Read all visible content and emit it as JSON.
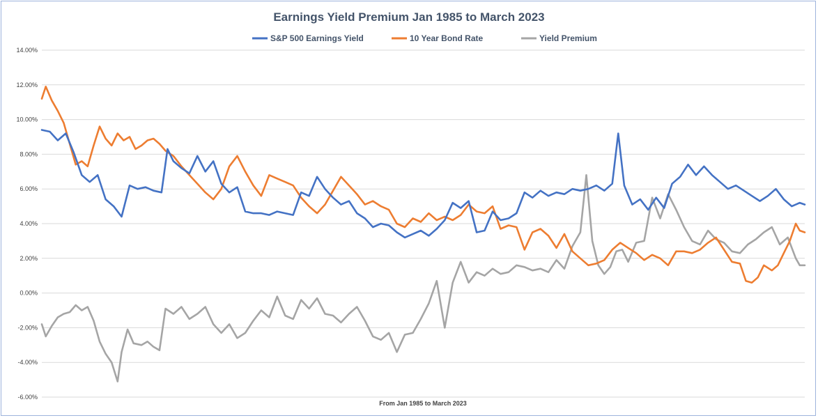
{
  "chart_data": {
    "type": "line",
    "title": "Earnings Yield Premium Jan 1985 to March 2023",
    "xlabel": "From Jan 1985 to March 2023",
    "ylabel": "",
    "ylim": [
      -6,
      14
    ],
    "yticks": [
      -6,
      -4,
      -2,
      0,
      2,
      4,
      6,
      8,
      10,
      12,
      14
    ],
    "ytick_format": "percent_2dp",
    "xlim": [
      1985.0,
      2023.25
    ],
    "grid": true,
    "legend": "top-center",
    "series": [
      {
        "name": "S&P 500 Earnings Yield",
        "color": "#4472c4",
        "points": [
          [
            1985.0,
            9.4
          ],
          [
            1985.4,
            9.3
          ],
          [
            1985.8,
            8.8
          ],
          [
            1986.2,
            9.2
          ],
          [
            1986.6,
            8.1
          ],
          [
            1987.0,
            6.8
          ],
          [
            1987.4,
            6.4
          ],
          [
            1987.8,
            6.8
          ],
          [
            1988.2,
            5.4
          ],
          [
            1988.6,
            5.0
          ],
          [
            1989.0,
            4.4
          ],
          [
            1989.4,
            6.2
          ],
          [
            1989.8,
            6.0
          ],
          [
            1990.2,
            6.1
          ],
          [
            1990.6,
            5.9
          ],
          [
            1991.0,
            5.8
          ],
          [
            1991.3,
            8.3
          ],
          [
            1991.6,
            7.6
          ],
          [
            1992.0,
            7.2
          ],
          [
            1992.4,
            6.9
          ],
          [
            1992.8,
            7.9
          ],
          [
            1993.2,
            7.0
          ],
          [
            1993.6,
            7.6
          ],
          [
            1994.0,
            6.3
          ],
          [
            1994.4,
            5.8
          ],
          [
            1994.8,
            6.1
          ],
          [
            1995.2,
            4.7
          ],
          [
            1995.6,
            4.6
          ],
          [
            1996.0,
            4.6
          ],
          [
            1996.4,
            4.5
          ],
          [
            1996.8,
            4.7
          ],
          [
            1997.2,
            4.6
          ],
          [
            1997.6,
            4.5
          ],
          [
            1998.0,
            5.8
          ],
          [
            1998.4,
            5.6
          ],
          [
            1998.8,
            6.7
          ],
          [
            1999.2,
            6.0
          ],
          [
            1999.6,
            5.5
          ],
          [
            2000.0,
            5.1
          ],
          [
            2000.4,
            5.3
          ],
          [
            2000.8,
            4.6
          ],
          [
            2001.2,
            4.3
          ],
          [
            2001.6,
            3.8
          ],
          [
            2002.0,
            4.0
          ],
          [
            2002.4,
            3.9
          ],
          [
            2002.8,
            3.5
          ],
          [
            2003.2,
            3.2
          ],
          [
            2003.6,
            3.4
          ],
          [
            2004.0,
            3.6
          ],
          [
            2004.4,
            3.3
          ],
          [
            2004.8,
            3.7
          ],
          [
            2005.2,
            4.2
          ],
          [
            2005.6,
            5.2
          ],
          [
            2006.0,
            4.9
          ],
          [
            2006.4,
            5.3
          ],
          [
            2006.8,
            3.5
          ],
          [
            2007.2,
            3.6
          ],
          [
            2007.6,
            4.7
          ],
          [
            2008.0,
            4.2
          ],
          [
            2008.4,
            4.3
          ],
          [
            2008.8,
            4.6
          ],
          [
            2009.2,
            5.8
          ],
          [
            2009.6,
            5.5
          ],
          [
            2010.0,
            5.9
          ],
          [
            2010.4,
            5.6
          ],
          [
            2010.8,
            5.8
          ],
          [
            2011.2,
            5.7
          ],
          [
            2011.6,
            6.0
          ],
          [
            2012.0,
            5.9
          ],
          [
            2012.4,
            6.0
          ],
          [
            2012.8,
            6.2
          ],
          [
            2013.2,
            5.9
          ],
          [
            2013.6,
            6.3
          ],
          [
            2013.9,
            9.2
          ],
          [
            2014.2,
            6.2
          ],
          [
            2014.6,
            5.1
          ],
          [
            2015.0,
            5.4
          ],
          [
            2015.4,
            4.8
          ],
          [
            2015.8,
            5.5
          ],
          [
            2016.2,
            4.9
          ],
          [
            2016.6,
            6.3
          ],
          [
            2017.0,
            6.7
          ],
          [
            2017.4,
            7.4
          ],
          [
            2017.8,
            6.8
          ],
          [
            2018.2,
            7.3
          ],
          [
            2018.6,
            6.8
          ],
          [
            2019.0,
            6.4
          ],
          [
            2019.4,
            6.0
          ],
          [
            2019.8,
            6.2
          ],
          [
            2020.2,
            5.9
          ],
          [
            2020.6,
            5.6
          ],
          [
            2021.0,
            5.3
          ],
          [
            2021.4,
            5.6
          ],
          [
            2021.8,
            6.0
          ],
          [
            2022.2,
            5.4
          ],
          [
            2022.6,
            5.0
          ],
          [
            2023.0,
            5.2
          ],
          [
            2023.25,
            5.1
          ]
        ]
      },
      {
        "name": "10 Year Bond Rate",
        "color": "#ed7d31",
        "points": [
          [
            1985.0,
            11.2
          ],
          [
            1985.2,
            11.9
          ],
          [
            1985.5,
            11.1
          ],
          [
            1985.8,
            10.5
          ],
          [
            1986.1,
            9.8
          ],
          [
            1986.4,
            8.6
          ],
          [
            1986.7,
            7.4
          ],
          [
            1987.0,
            7.6
          ],
          [
            1987.3,
            7.3
          ],
          [
            1987.6,
            8.5
          ],
          [
            1987.9,
            9.6
          ],
          [
            1988.2,
            8.9
          ],
          [
            1988.5,
            8.5
          ],
          [
            1988.8,
            9.2
          ],
          [
            1989.1,
            8.8
          ],
          [
            1989.4,
            9.0
          ],
          [
            1989.7,
            8.3
          ],
          [
            1990.0,
            8.5
          ],
          [
            1990.3,
            8.8
          ],
          [
            1990.6,
            8.9
          ],
          [
            1990.9,
            8.6
          ],
          [
            1991.2,
            8.2
          ],
          [
            1991.6,
            7.9
          ],
          [
            1992.0,
            7.3
          ],
          [
            1992.4,
            6.8
          ],
          [
            1992.8,
            6.3
          ],
          [
            1993.2,
            5.8
          ],
          [
            1993.6,
            5.4
          ],
          [
            1994.0,
            6.0
          ],
          [
            1994.4,
            7.3
          ],
          [
            1994.8,
            7.9
          ],
          [
            1995.2,
            7.0
          ],
          [
            1995.6,
            6.2
          ],
          [
            1996.0,
            5.6
          ],
          [
            1996.4,
            6.8
          ],
          [
            1996.8,
            6.6
          ],
          [
            1997.2,
            6.4
          ],
          [
            1997.6,
            6.2
          ],
          [
            1998.0,
            5.5
          ],
          [
            1998.4,
            5.0
          ],
          [
            1998.8,
            4.6
          ],
          [
            1999.2,
            5.1
          ],
          [
            1999.6,
            5.9
          ],
          [
            2000.0,
            6.7
          ],
          [
            2000.4,
            6.2
          ],
          [
            2000.8,
            5.7
          ],
          [
            2001.2,
            5.1
          ],
          [
            2001.6,
            5.3
          ],
          [
            2002.0,
            5.0
          ],
          [
            2002.4,
            4.8
          ],
          [
            2002.8,
            4.0
          ],
          [
            2003.2,
            3.8
          ],
          [
            2003.6,
            4.3
          ],
          [
            2004.0,
            4.1
          ],
          [
            2004.4,
            4.6
          ],
          [
            2004.8,
            4.2
          ],
          [
            2005.2,
            4.4
          ],
          [
            2005.6,
            4.2
          ],
          [
            2006.0,
            4.5
          ],
          [
            2006.4,
            5.1
          ],
          [
            2006.8,
            4.7
          ],
          [
            2007.2,
            4.6
          ],
          [
            2007.6,
            5.0
          ],
          [
            2008.0,
            3.7
          ],
          [
            2008.4,
            3.9
          ],
          [
            2008.8,
            3.8
          ],
          [
            2009.2,
            2.5
          ],
          [
            2009.6,
            3.5
          ],
          [
            2010.0,
            3.7
          ],
          [
            2010.4,
            3.3
          ],
          [
            2010.8,
            2.6
          ],
          [
            2011.2,
            3.4
          ],
          [
            2011.6,
            2.4
          ],
          [
            2012.0,
            2.0
          ],
          [
            2012.4,
            1.6
          ],
          [
            2012.8,
            1.7
          ],
          [
            2013.2,
            1.9
          ],
          [
            2013.6,
            2.5
          ],
          [
            2014.0,
            2.9
          ],
          [
            2014.4,
            2.6
          ],
          [
            2014.8,
            2.3
          ],
          [
            2015.2,
            1.9
          ],
          [
            2015.6,
            2.2
          ],
          [
            2016.0,
            2.0
          ],
          [
            2016.4,
            1.6
          ],
          [
            2016.8,
            2.4
          ],
          [
            2017.2,
            2.4
          ],
          [
            2017.6,
            2.3
          ],
          [
            2018.0,
            2.5
          ],
          [
            2018.4,
            2.9
          ],
          [
            2018.8,
            3.2
          ],
          [
            2019.2,
            2.5
          ],
          [
            2019.6,
            1.8
          ],
          [
            2020.0,
            1.7
          ],
          [
            2020.3,
            0.7
          ],
          [
            2020.6,
            0.6
          ],
          [
            2020.9,
            0.9
          ],
          [
            2021.2,
            1.6
          ],
          [
            2021.6,
            1.3
          ],
          [
            2021.9,
            1.6
          ],
          [
            2022.2,
            2.3
          ],
          [
            2022.5,
            3.0
          ],
          [
            2022.8,
            4.0
          ],
          [
            2023.0,
            3.6
          ],
          [
            2023.25,
            3.5
          ]
        ]
      },
      {
        "name": "Yield Premium",
        "color": "#a5a5a5",
        "points": [
          [
            1985.0,
            -1.8
          ],
          [
            1985.2,
            -2.5
          ],
          [
            1985.5,
            -1.9
          ],
          [
            1985.8,
            -1.4
          ],
          [
            1986.1,
            -1.2
          ],
          [
            1986.4,
            -1.1
          ],
          [
            1986.7,
            -0.7
          ],
          [
            1987.0,
            -1.0
          ],
          [
            1987.3,
            -0.8
          ],
          [
            1987.6,
            -1.6
          ],
          [
            1987.9,
            -2.8
          ],
          [
            1988.2,
            -3.5
          ],
          [
            1988.5,
            -4.0
          ],
          [
            1988.8,
            -5.1
          ],
          [
            1989.0,
            -3.4
          ],
          [
            1989.3,
            -2.1
          ],
          [
            1989.6,
            -2.9
          ],
          [
            1990.0,
            -3.0
          ],
          [
            1990.3,
            -2.8
          ],
          [
            1990.6,
            -3.1
          ],
          [
            1990.9,
            -3.3
          ],
          [
            1991.2,
            -0.9
          ],
          [
            1991.6,
            -1.2
          ],
          [
            1992.0,
            -0.8
          ],
          [
            1992.4,
            -1.5
          ],
          [
            1992.8,
            -1.2
          ],
          [
            1993.2,
            -0.8
          ],
          [
            1993.6,
            -1.8
          ],
          [
            1994.0,
            -2.3
          ],
          [
            1994.4,
            -1.8
          ],
          [
            1994.8,
            -2.6
          ],
          [
            1995.2,
            -2.3
          ],
          [
            1995.6,
            -1.6
          ],
          [
            1996.0,
            -1.0
          ],
          [
            1996.4,
            -1.4
          ],
          [
            1996.8,
            -0.2
          ],
          [
            1997.2,
            -1.3
          ],
          [
            1997.6,
            -1.5
          ],
          [
            1998.0,
            -0.4
          ],
          [
            1998.4,
            -0.9
          ],
          [
            1998.8,
            -0.3
          ],
          [
            1999.2,
            -1.2
          ],
          [
            1999.6,
            -1.3
          ],
          [
            2000.0,
            -1.7
          ],
          [
            2000.4,
            -1.2
          ],
          [
            2000.8,
            -0.8
          ],
          [
            2001.2,
            -1.6
          ],
          [
            2001.6,
            -2.5
          ],
          [
            2002.0,
            -2.7
          ],
          [
            2002.4,
            -2.3
          ],
          [
            2002.8,
            -3.4
          ],
          [
            2003.2,
            -2.4
          ],
          [
            2003.6,
            -2.3
          ],
          [
            2004.0,
            -1.5
          ],
          [
            2004.4,
            -0.6
          ],
          [
            2004.8,
            0.7
          ],
          [
            2005.2,
            -2.0
          ],
          [
            2005.6,
            0.6
          ],
          [
            2006.0,
            1.8
          ],
          [
            2006.4,
            0.6
          ],
          [
            2006.8,
            1.2
          ],
          [
            2007.2,
            1.0
          ],
          [
            2007.6,
            1.4
          ],
          [
            2008.0,
            1.1
          ],
          [
            2008.4,
            1.2
          ],
          [
            2008.8,
            1.6
          ],
          [
            2009.2,
            1.5
          ],
          [
            2009.6,
            1.3
          ],
          [
            2010.0,
            1.4
          ],
          [
            2010.4,
            1.2
          ],
          [
            2010.8,
            1.9
          ],
          [
            2011.2,
            1.4
          ],
          [
            2011.6,
            2.7
          ],
          [
            2012.0,
            3.5
          ],
          [
            2012.3,
            6.8
          ],
          [
            2012.6,
            3.0
          ],
          [
            2012.9,
            1.6
          ],
          [
            2013.2,
            1.1
          ],
          [
            2013.5,
            1.5
          ],
          [
            2013.8,
            2.4
          ],
          [
            2014.1,
            2.5
          ],
          [
            2014.4,
            1.8
          ],
          [
            2014.8,
            2.9
          ],
          [
            2015.2,
            3.0
          ],
          [
            2015.6,
            5.5
          ],
          [
            2016.0,
            4.3
          ],
          [
            2016.4,
            5.7
          ],
          [
            2016.8,
            4.8
          ],
          [
            2017.2,
            3.8
          ],
          [
            2017.6,
            3.0
          ],
          [
            2018.0,
            2.8
          ],
          [
            2018.4,
            3.6
          ],
          [
            2018.8,
            3.1
          ],
          [
            2019.2,
            2.9
          ],
          [
            2019.6,
            2.4
          ],
          [
            2020.0,
            2.3
          ],
          [
            2020.4,
            2.8
          ],
          [
            2020.8,
            3.1
          ],
          [
            2021.2,
            3.5
          ],
          [
            2021.6,
            3.8
          ],
          [
            2022.0,
            2.8
          ],
          [
            2022.4,
            3.2
          ],
          [
            2022.8,
            2.0
          ],
          [
            2023.0,
            1.6
          ],
          [
            2023.25,
            1.6
          ]
        ]
      }
    ]
  }
}
